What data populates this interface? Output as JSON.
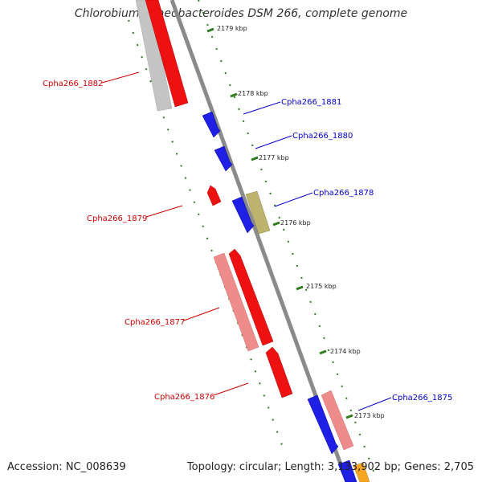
{
  "title": "Chlorobium phaeobacteroides DSM 266, complete genome",
  "footer": {
    "accession": "Accession: NC_008639",
    "topology": "Topology: circular; Length: 3,133,902 bp; Genes: 2,705"
  },
  "colors": {
    "backbone": "#8a8a8a",
    "tick": "#2d7d1e",
    "forward_label": "#0000cc",
    "reverse_label": "#cc0000",
    "blue": "#1f1fe6",
    "red": "#ee1111",
    "pink": "#ee8c8c",
    "gray": "#c4c4c4",
    "olive": "#bdb36e",
    "orange": "#f5a623"
  },
  "kbp_labels": [
    "2179 kbp",
    "2178 kbp",
    "2177 kbp",
    "2176 kbp",
    "2175 kbp",
    "2174 kbp",
    "2173 kbp"
  ],
  "gene_labels": [
    {
      "name": "Cpha266_1882",
      "strand": "reverse"
    },
    {
      "name": "Cpha266_1881",
      "strand": "forward"
    },
    {
      "name": "Cpha266_1880",
      "strand": "forward"
    },
    {
      "name": "Cpha266_1878",
      "strand": "forward"
    },
    {
      "name": "Cpha266_1879",
      "strand": "reverse"
    },
    {
      "name": "Cpha266_1877",
      "strand": "reverse"
    },
    {
      "name": "Cpha266_1876",
      "strand": "reverse"
    },
    {
      "name": "Cpha266_1875",
      "strand": "forward"
    }
  ]
}
